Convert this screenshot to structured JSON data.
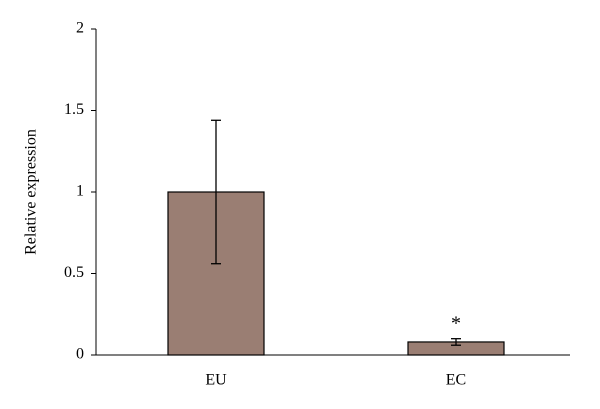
{
  "chart_data": {
    "type": "bar",
    "y_label": "Relative expression",
    "categories": [
      "EU",
      "EC"
    ],
    "values": [
      1,
      0.08
    ],
    "errors": [
      0.44,
      0.02
    ],
    "color": "#9a7e73",
    "annotation": "*",
    "ylim": [
      0,
      2
    ],
    "yticks": [
      0,
      0.5,
      1,
      1.5,
      2
    ]
  }
}
